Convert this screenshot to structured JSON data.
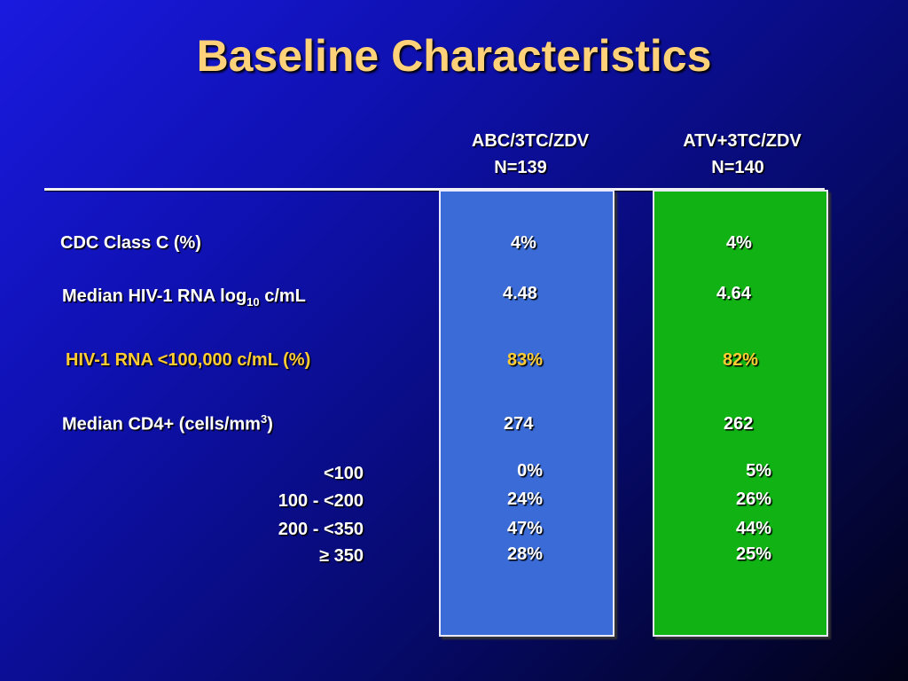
{
  "slide": {
    "title": "Baseline Characteristics",
    "columns": [
      {
        "name": "ABC/3TC/ZDV",
        "n": "N=139",
        "color": "#3a6bd6"
      },
      {
        "name": "ATV+3TC/ZDV",
        "n": "N=140",
        "color": "#10b313"
      }
    ],
    "rows": {
      "cdc": {
        "label": "CDC Class C (%)",
        "a": "4%",
        "b": "4%"
      },
      "rna": {
        "label_main": "Median HIV-1 RNA log",
        "label_sub": "10",
        "label_unit": " c/mL",
        "a": "4.48",
        "b": "4.64"
      },
      "rna100": {
        "label": "HIV-1  RNA <100,000 c/mL (%)",
        "a": "83%",
        "b": "82%",
        "color": "#ffcc33"
      },
      "cd4": {
        "label_main": "Median CD4+ (cells/mm",
        "label_sup": "3",
        "label_end": ")",
        "a": "274",
        "b": "262"
      },
      "cd4_ranges": [
        {
          "label": "<100",
          "a": "0%",
          "b": "5%"
        },
        {
          "label": "100 - <200",
          "a": "24%",
          "b": "26%"
        },
        {
          "label": "200 - <350",
          "a": "47%",
          "b": "44%"
        },
        {
          "label": "≥ 350",
          "a": "28%",
          "b": "25%"
        }
      ]
    }
  }
}
